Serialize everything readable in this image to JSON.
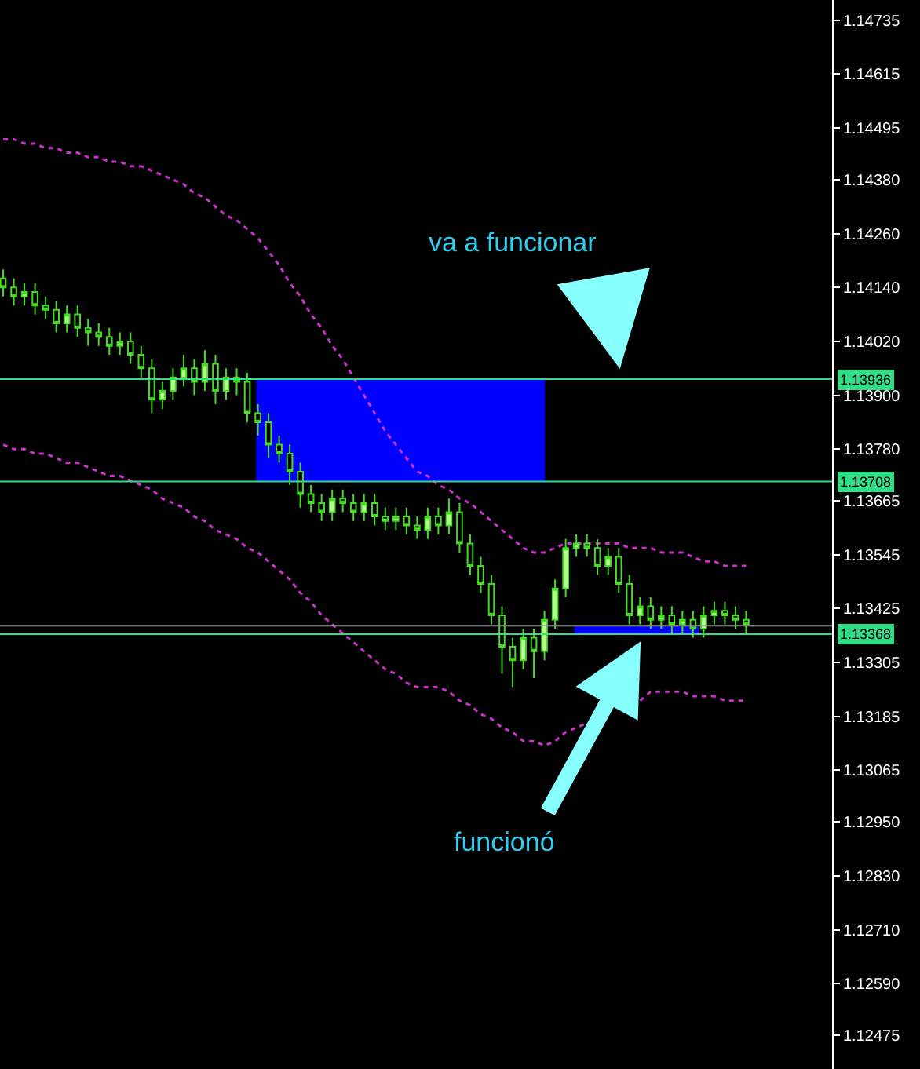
{
  "chart_data": {
    "type": "candlestick",
    "categories": [
      null,
      null,
      null,
      null,
      null,
      null,
      null,
      null,
      null,
      null,
      null,
      null,
      null,
      null,
      null,
      null,
      null,
      null,
      null,
      null,
      null,
      null,
      null,
      null,
      null,
      null,
      null,
      null,
      null,
      null,
      null,
      null,
      null,
      null,
      null,
      null,
      null,
      null,
      null,
      null,
      null,
      null,
      null,
      null,
      null,
      null,
      null,
      null,
      null,
      null,
      null,
      null,
      null,
      null,
      null,
      null,
      null,
      null,
      null,
      null,
      null,
      null,
      null,
      null,
      null,
      null,
      null,
      null,
      null,
      null,
      null
    ],
    "ohlc": [
      [
        1.1416,
        1.1418,
        1.1412,
        1.1414
      ],
      [
        1.1414,
        1.1416,
        1.141,
        1.1412
      ],
      [
        1.1412,
        1.1415,
        1.141,
        1.1413
      ],
      [
        1.1413,
        1.1415,
        1.1408,
        1.141
      ],
      [
        1.141,
        1.1412,
        1.1407,
        1.1409
      ],
      [
        1.1409,
        1.1411,
        1.1404,
        1.1406
      ],
      [
        1.1406,
        1.141,
        1.1404,
        1.1408
      ],
      [
        1.1408,
        1.141,
        1.1403,
        1.1405
      ],
      [
        1.1405,
        1.1407,
        1.1401,
        1.1404
      ],
      [
        1.1404,
        1.1406,
        1.1401,
        1.1403
      ],
      [
        1.1403,
        1.1405,
        1.1399,
        1.1401
      ],
      [
        1.1401,
        1.1404,
        1.1399,
        1.1402
      ],
      [
        1.1402,
        1.1404,
        1.1397,
        1.1399
      ],
      [
        1.1399,
        1.1401,
        1.1394,
        1.1396
      ],
      [
        1.1396,
        1.1398,
        1.1386,
        1.1389
      ],
      [
        1.1389,
        1.1393,
        1.1387,
        1.1391
      ],
      [
        1.1391,
        1.1396,
        1.1389,
        1.1394
      ],
      [
        1.1394,
        1.1399,
        1.1392,
        1.1396
      ],
      [
        1.1396,
        1.1398,
        1.139,
        1.1393
      ],
      [
        1.1393,
        1.14,
        1.1391,
        1.1397
      ],
      [
        1.1397,
        1.1399,
        1.1388,
        1.1391
      ],
      [
        1.1391,
        1.1396,
        1.1389,
        1.1394
      ],
      [
        1.1394,
        1.1396,
        1.139,
        1.1393
      ],
      [
        1.1393,
        1.1395,
        1.1384,
        1.1386
      ],
      [
        1.1386,
        1.1388,
        1.1381,
        1.1384
      ],
      [
        1.1384,
        1.1386,
        1.1376,
        1.1379
      ],
      [
        1.1379,
        1.1381,
        1.1375,
        1.1377
      ],
      [
        1.1377,
        1.1379,
        1.137,
        1.1373
      ],
      [
        1.1373,
        1.1375,
        1.1365,
        1.1368
      ],
      [
        1.1368,
        1.137,
        1.1364,
        1.1366
      ],
      [
        1.1366,
        1.1368,
        1.1362,
        1.1364
      ],
      [
        1.1364,
        1.1369,
        1.1362,
        1.1367
      ],
      [
        1.1367,
        1.1369,
        1.1364,
        1.1366
      ],
      [
        1.1366,
        1.1368,
        1.1362,
        1.1364
      ],
      [
        1.1364,
        1.1368,
        1.1362,
        1.1366
      ],
      [
        1.1366,
        1.1368,
        1.1361,
        1.1363
      ],
      [
        1.1363,
        1.1365,
        1.136,
        1.1362
      ],
      [
        1.1362,
        1.1365,
        1.136,
        1.1363
      ],
      [
        1.1363,
        1.1365,
        1.1359,
        1.1361
      ],
      [
        1.1361,
        1.1363,
        1.1358,
        1.136
      ],
      [
        1.136,
        1.1365,
        1.1358,
        1.1363
      ],
      [
        1.1363,
        1.1365,
        1.1359,
        1.1361
      ],
      [
        1.1361,
        1.1367,
        1.1359,
        1.1364
      ],
      [
        1.1364,
        1.1366,
        1.1355,
        1.1357
      ],
      [
        1.1357,
        1.1359,
        1.135,
        1.1352
      ],
      [
        1.1352,
        1.1354,
        1.1346,
        1.1348
      ],
      [
        1.1348,
        1.135,
        1.1339,
        1.1341
      ],
      [
        1.1341,
        1.1343,
        1.1328,
        1.1334
      ],
      [
        1.1334,
        1.1336,
        1.1325,
        1.1331
      ],
      [
        1.1331,
        1.1338,
        1.1329,
        1.1336
      ],
      [
        1.1336,
        1.1338,
        1.1327,
        1.1333
      ],
      [
        1.1333,
        1.1342,
        1.1331,
        1.134
      ],
      [
        1.134,
        1.1349,
        1.1338,
        1.1347
      ],
      [
        1.1347,
        1.1358,
        1.1345,
        1.1356
      ],
      [
        1.1356,
        1.1359,
        1.1354,
        1.1357
      ],
      [
        1.1357,
        1.1359,
        1.1354,
        1.1356
      ],
      [
        1.1356,
        1.1358,
        1.135,
        1.1352
      ],
      [
        1.1352,
        1.1356,
        1.135,
        1.1354
      ],
      [
        1.1354,
        1.1356,
        1.1346,
        1.1348
      ],
      [
        1.1348,
        1.135,
        1.1339,
        1.1341
      ],
      [
        1.1341,
        1.1345,
        1.1339,
        1.1343
      ],
      [
        1.1343,
        1.1345,
        1.1338,
        1.134
      ],
      [
        1.134,
        1.1343,
        1.1338,
        1.1341
      ],
      [
        1.1341,
        1.1343,
        1.1337,
        1.1339
      ],
      [
        1.1339,
        1.1342,
        1.1337,
        1.134
      ],
      [
        1.134,
        1.1342,
        1.1336,
        1.1338
      ],
      [
        1.1338,
        1.1343,
        1.1336,
        1.1341
      ],
      [
        1.1341,
        1.1344,
        1.1339,
        1.1342
      ],
      [
        1.1342,
        1.1344,
        1.1339,
        1.1341
      ],
      [
        1.1341,
        1.1343,
        1.1338,
        1.134
      ],
      [
        1.134,
        1.1342,
        1.1337,
        1.1339
      ]
    ],
    "series": [
      {
        "type": "line",
        "color": "#cc33cc",
        "line_style": "dotted",
        "values": [
          1.1447,
          1.1447,
          1.1446,
          1.1446,
          1.1445,
          1.1445,
          1.1444,
          1.1444,
          1.1443,
          1.1443,
          1.1442,
          1.1442,
          1.1441,
          1.1441,
          1.144,
          1.1439,
          1.1438,
          1.1437,
          1.1435,
          1.1434,
          1.1432,
          1.143,
          1.1429,
          1.1427,
          1.1425,
          1.1422,
          1.1419,
          1.1415,
          1.1412,
          1.1408,
          1.1405,
          1.1401,
          1.1398,
          1.1394,
          1.139,
          1.1386,
          1.1382,
          1.1379,
          1.1376,
          1.1373,
          1.1372,
          1.137,
          1.1369,
          1.1367,
          1.1366,
          1.1364,
          1.1362,
          1.136,
          1.1358,
          1.1356,
          1.1355,
          1.1355,
          1.1356,
          1.1357,
          1.1357,
          1.1357,
          1.1357,
          1.1357,
          1.1357,
          1.1356,
          1.1356,
          1.1356,
          1.1355,
          1.1355,
          1.1355,
          1.1354,
          1.1353,
          1.1353,
          1.1352,
          1.1352,
          1.1352
        ]
      },
      {
        "type": "line",
        "color": "#cc33cc",
        "line_style": "dotted",
        "values": [
          1.1379,
          1.1378,
          1.1378,
          1.1377,
          1.1377,
          1.1376,
          1.1375,
          1.1375,
          1.1374,
          1.1373,
          1.1372,
          1.1372,
          1.1371,
          1.137,
          1.1369,
          1.1367,
          1.1366,
          1.1365,
          1.1363,
          1.1362,
          1.136,
          1.1359,
          1.1358,
          1.1356,
          1.1355,
          1.1353,
          1.1351,
          1.1349,
          1.1346,
          1.1344,
          1.1341,
          1.1339,
          1.1337,
          1.1335,
          1.1333,
          1.1331,
          1.1329,
          1.1328,
          1.1326,
          1.1325,
          1.1325,
          1.1325,
          1.1324,
          1.1322,
          1.1321,
          1.1319,
          1.1318,
          1.1316,
          1.1315,
          1.1313,
          1.1313,
          1.1312,
          1.1313,
          1.1315,
          1.1316,
          1.1317,
          1.1318,
          null,
          null,
          null,
          1.1322,
          1.1324,
          1.1324,
          1.1324,
          1.1324,
          1.1323,
          1.1323,
          1.1323,
          1.1322,
          1.1322,
          1.1322
        ]
      }
    ],
    "ylim": [
      1.124,
      1.1478
    ],
    "yticks": [
      1.12475,
      {
        "value": 1.1259,
        "label": "1.12590"
      },
      {
        "value": 1.1271,
        "label": "1.12710"
      },
      {
        "value": 1.1283,
        "label": "1.12830"
      },
      {
        "value": 1.1295,
        "label": "1.12950"
      },
      1.13065,
      1.13185,
      1.13305,
      1.13425,
      1.13545,
      1.13665,
      {
        "value": 1.1378,
        "label": "1.13780"
      },
      {
        "value": 1.139,
        "label": "1.13900"
      },
      {
        "value": 1.1402,
        "label": "1.14020"
      },
      {
        "value": 1.1414,
        "label": "1.14140"
      },
      {
        "value": 1.1426,
        "label": "1.14260"
      },
      {
        "value": 1.1438,
        "label": "1.14380"
      },
      1.14495,
      1.14615,
      1.14735
    ],
    "bands": [
      {
        "axis": "y",
        "from": 1.13708,
        "to": 1.13936,
        "color": "#0000ff"
      },
      {
        "axis": "y",
        "from": 1.13368,
        "to": 1.13387,
        "color": "#0000ff"
      }
    ],
    "ref_lines": [
      {
        "axis": "y",
        "value": 1.13936,
        "label": "1.13936",
        "color": "#33dd88"
      },
      {
        "axis": "y",
        "value": 1.13708,
        "label": "1.13708",
        "color": "#33dd88"
      },
      {
        "axis": "y",
        "value": 1.13387,
        "color": "#999999"
      },
      {
        "axis": "y",
        "value": 1.13368,
        "label": "1.13368",
        "color": "#33dd88"
      }
    ],
    "annotations": [
      "va a funcionar",
      "funcionó"
    ],
    "tick_labels": "y",
    "grid": false,
    "marker": "none"
  }
}
